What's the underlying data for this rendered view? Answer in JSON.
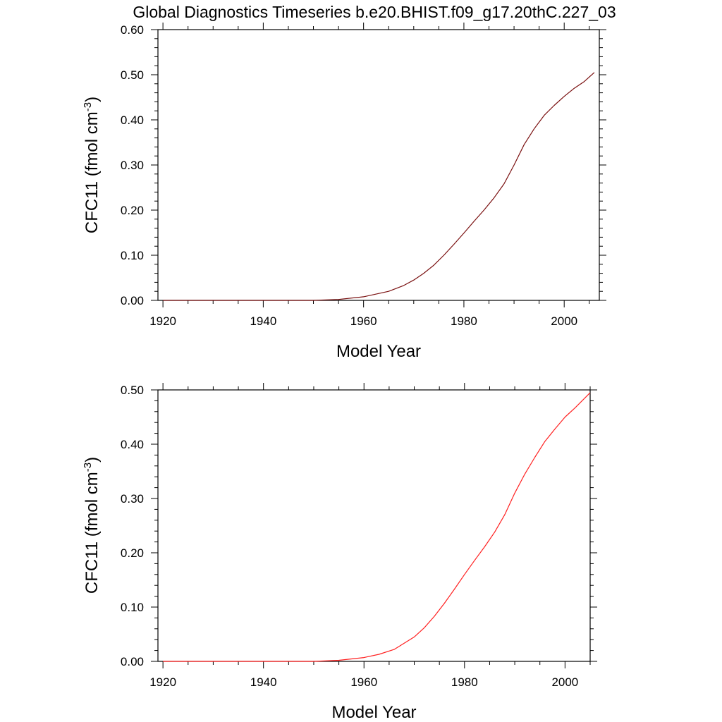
{
  "figure": {
    "title": "Global Diagnostics Timeseries b.e20.BHIST.f09_g17.20thC.227_03"
  },
  "colors": {
    "background": "#ffffff",
    "axis": "#000000",
    "panel1_line": "#7a1010",
    "panel2_line": "#ff2020"
  },
  "chart_data": [
    {
      "type": "line",
      "title": "Global Diagnostics Timeseries b.e20.BHIST.f09_g17.20thC.227_03",
      "xlabel": "Model Year",
      "ylabel": "CFC11 (fmol cm",
      "ylabel_superscript": "-3",
      "ylabel_suffix": ")",
      "xlim": [
        1919,
        2007
      ],
      "ylim": [
        0,
        0.6
      ],
      "xticks": [
        1920,
        1940,
        1960,
        1980,
        2000
      ],
      "xtick_labels": [
        "1920",
        "1940",
        "1960",
        "1980",
        "2000"
      ],
      "yticks": [
        0,
        0.1,
        0.2,
        0.3,
        0.4,
        0.5,
        0.6
      ],
      "ytick_labels": [
        "0.00",
        "0.10",
        "0.20",
        "0.30",
        "0.40",
        "0.50",
        "0.60"
      ],
      "grid": false,
      "series": [
        {
          "name": "CFC11",
          "color": "#7a1010",
          "x": [
            1920,
            1930,
            1940,
            1945,
            1950,
            1955,
            1960,
            1965,
            1968,
            1970,
            1972,
            1974,
            1976,
            1978,
            1980,
            1982,
            1984,
            1986,
            1988,
            1990,
            1992,
            1994,
            1996,
            1998,
            2000,
            2002,
            2004,
            2006
          ],
          "y": [
            0,
            0,
            0,
            0,
            0,
            0.002,
            0.008,
            0.02,
            0.033,
            0.045,
            0.06,
            0.078,
            0.1,
            0.124,
            0.149,
            0.175,
            0.2,
            0.227,
            0.258,
            0.3,
            0.345,
            0.38,
            0.41,
            0.432,
            0.452,
            0.47,
            0.485,
            0.505
          ]
        }
      ]
    },
    {
      "type": "line",
      "title": "",
      "xlabel": "Model Year",
      "ylabel": "CFC11 (fmol cm",
      "ylabel_superscript": "-3",
      "ylabel_suffix": ")",
      "xlim": [
        1919,
        2005
      ],
      "ylim": [
        0,
        0.5
      ],
      "xticks": [
        1920,
        1940,
        1960,
        1980,
        2000
      ],
      "xtick_labels": [
        "1920",
        "1940",
        "1960",
        "1980",
        "2000"
      ],
      "yticks": [
        0,
        0.1,
        0.2,
        0.3,
        0.4,
        0.5
      ],
      "ytick_labels": [
        "0.00",
        "0.10",
        "0.20",
        "0.30",
        "0.40",
        "0.50"
      ],
      "grid": false,
      "series": [
        {
          "name": "CFC11",
          "color": "#ff2020",
          "x": [
            1920,
            1930,
            1940,
            1945,
            1950,
            1955,
            1960,
            1963,
            1966,
            1970,
            1972,
            1974,
            1976,
            1978,
            1980,
            1982,
            1984,
            1986,
            1988,
            1990,
            1992,
            1994,
            1996,
            1998,
            2000,
            2002,
            2005
          ],
          "y": [
            0,
            0,
            0,
            0,
            0,
            0.002,
            0.007,
            0.013,
            0.022,
            0.045,
            0.062,
            0.083,
            0.107,
            0.133,
            0.16,
            0.186,
            0.211,
            0.238,
            0.27,
            0.31,
            0.345,
            0.376,
            0.405,
            0.428,
            0.45,
            0.467,
            0.495
          ]
        }
      ]
    }
  ]
}
